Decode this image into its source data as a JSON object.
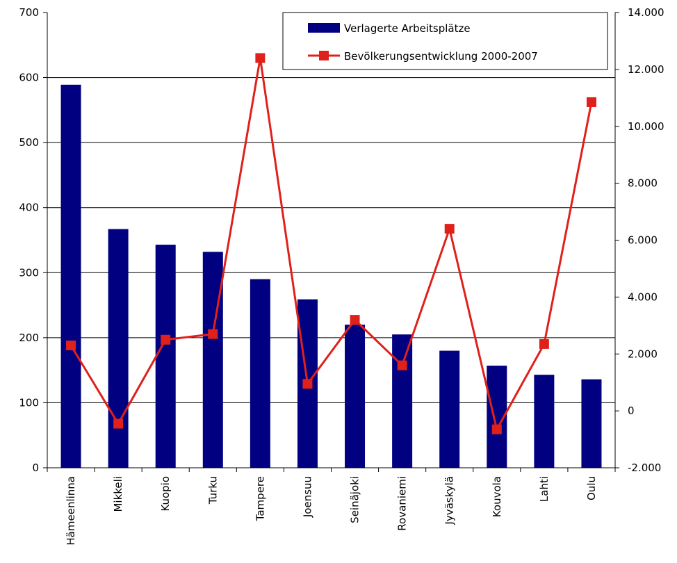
{
  "chart_data": {
    "type": "bar",
    "categories": [
      "Hämeenlinna",
      "Mikkeli",
      "Kuopio",
      "Turku",
      "Tampere",
      "Joensuu",
      "Seinäjoki",
      "Rovaniemi",
      "Jyväskylä",
      "Kouvola",
      "Lahti",
      "Oulu"
    ],
    "series": [
      {
        "name": "Verlagerte Arbeitsplätze",
        "type": "bar",
        "axis": "left",
        "color": "#000080",
        "values": [
          589,
          367,
          343,
          332,
          290,
          259,
          220,
          205,
          180,
          157,
          143,
          136
        ]
      },
      {
        "name": "Bevölkerungsentwicklung 2000-2007",
        "type": "line",
        "axis": "right",
        "color": "#e0201a",
        "values": [
          2300,
          -450,
          2500,
          2700,
          12400,
          950,
          3200,
          1600,
          6400,
          -650,
          2350,
          10850
        ]
      }
    ],
    "y_left": {
      "min": 0,
      "max": 700,
      "ticks": [
        "0",
        "100",
        "200",
        "300",
        "400",
        "500",
        "600",
        "700"
      ]
    },
    "y_right": {
      "min": -2000,
      "max": 14000,
      "ticks": [
        "-2.000",
        "0",
        "2.000",
        "4.000",
        "6.000",
        "8.000",
        "10.000",
        "12.000",
        "14.000"
      ]
    },
    "grid": true,
    "legend_position": "top-right"
  }
}
